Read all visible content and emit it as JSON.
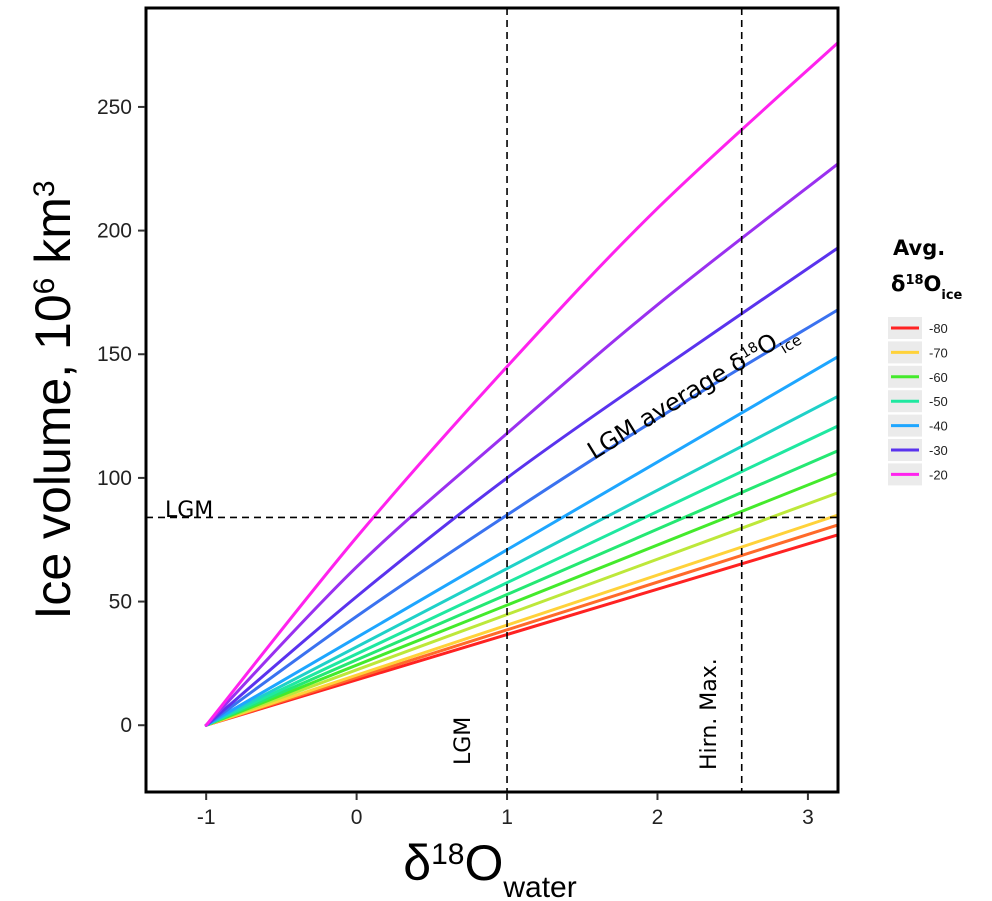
{
  "chart_data": {
    "type": "line",
    "ylabel": "Ice volume, 10",
    "ylabel_sup": "6",
    "ylabel_unit": " km",
    "ylabel_unit_sup": "3",
    "xlabel": "δ",
    "xlabel_sup": "18",
    "xlabel_main": "O",
    "xlabel_sub": "water",
    "xlim": [
      -1.4,
      3.2
    ],
    "ylim": [
      -27,
      290
    ],
    "x_ticks": [
      -1,
      0,
      1,
      2,
      3
    ],
    "x_tick_labels": [
      "-1",
      "0",
      "1",
      "2",
      "3"
    ],
    "y_ticks": [
      0,
      50,
      100,
      150,
      200,
      250
    ],
    "y_tick_labels": [
      "0",
      "50",
      "100",
      "150",
      "200",
      "250"
    ],
    "grid": false,
    "legend": {
      "title_line1": "Avg.",
      "title_delta": "δ",
      "title_sup": "18",
      "title_o": "O",
      "title_sub": "ice",
      "placement": "right",
      "entries": [
        {
          "label": "-80",
          "color": "#ff2222"
        },
        {
          "label": "-70",
          "color": "#ffd23a"
        },
        {
          "label": "-60",
          "color": "#44ea2c"
        },
        {
          "label": "-50",
          "color": "#1fe8a0"
        },
        {
          "label": "-40",
          "color": "#1ea6ff"
        },
        {
          "label": "-30",
          "color": "#5a33ee"
        },
        {
          "label": "-20",
          "color": "#ff22ee"
        }
      ]
    },
    "series": [
      {
        "color": "#ff2222",
        "x": [
          -1,
          3.2
        ],
        "y": [
          0,
          77
        ]
      },
      {
        "color": "#ff6a2a",
        "x": [
          -1,
          3.2
        ],
        "y": [
          0,
          81
        ]
      },
      {
        "color": "#ffd23a",
        "x": [
          -1,
          3.2
        ],
        "y": [
          0,
          85
        ]
      },
      {
        "color": "#bde83a",
        "x": [
          -1,
          3.2
        ],
        "y": [
          0,
          94
        ]
      },
      {
        "color": "#44ea2c",
        "x": [
          -1,
          3.2
        ],
        "y": [
          0,
          102
        ]
      },
      {
        "color": "#25e873",
        "x": [
          -1,
          3.2
        ],
        "y": [
          0,
          111
        ]
      },
      {
        "color": "#1fe8a0",
        "x": [
          -1,
          3.2
        ],
        "y": [
          0,
          121
        ]
      },
      {
        "color": "#1fd1c8",
        "x": [
          -1,
          3.2
        ],
        "y": [
          0,
          133
        ]
      },
      {
        "color": "#1ea6ff",
        "x": [
          -1,
          3.2
        ],
        "y": [
          0,
          149
        ]
      },
      {
        "color": "#3a72f0",
        "x": [
          -1,
          0,
          1,
          2,
          3.2
        ],
        "y": [
          0,
          44,
          85,
          124,
          168
        ]
      },
      {
        "color": "#5a33ee",
        "x": [
          -1,
          0,
          1,
          2,
          3.2
        ],
        "y": [
          0,
          52,
          100,
          143,
          193
        ]
      },
      {
        "color": "#9a30f0",
        "x": [
          -1,
          0,
          1,
          2,
          3.2
        ],
        "y": [
          0,
          64,
          118,
          170,
          227
        ]
      },
      {
        "color": "#ff22ee",
        "x": [
          -1,
          0,
          1,
          2,
          3.2
        ],
        "y": [
          0,
          76,
          145,
          209,
          276
        ]
      }
    ],
    "reference_lines": [
      {
        "orientation": "horizontal",
        "value": 84,
        "label": "LGM"
      },
      {
        "orientation": "vertical",
        "value": 1,
        "label": "LGM"
      },
      {
        "orientation": "vertical",
        "value": 2.56,
        "label": "Hirn. Max."
      }
    ],
    "curve_annotation": {
      "text": "LGM average δ",
      "sup": "18",
      "o": "O",
      "sub": "ice"
    }
  }
}
